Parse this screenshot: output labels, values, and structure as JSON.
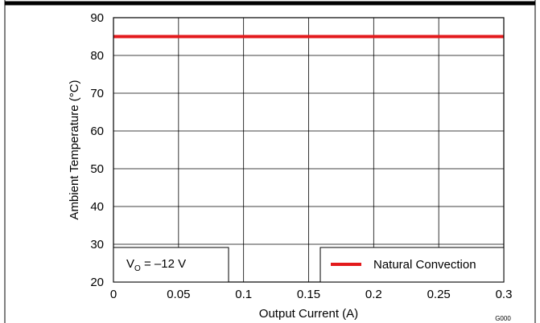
{
  "chart_data": {
    "type": "line",
    "title": "",
    "xlabel": "Output Current (A)",
    "ylabel": "Ambient Temperature (°C)",
    "xlim": [
      0,
      0.3
    ],
    "ylim": [
      20,
      90
    ],
    "x_ticks": [
      "0",
      "0.05",
      "0.1",
      "0.15",
      "0.2",
      "0.25",
      "0.3"
    ],
    "y_ticks": [
      "20",
      "30",
      "40",
      "50",
      "60",
      "70",
      "80",
      "90"
    ],
    "grid": true,
    "legend_position": "bottom-right",
    "series": [
      {
        "name": "Natural Convection",
        "color": "#e31a1c",
        "x": [
          0,
          0.3
        ],
        "y": [
          85,
          85
        ]
      }
    ],
    "annotation": {
      "v": "V",
      "sub": "O",
      "rest": " = –12 V"
    },
    "figure_code": "G000"
  }
}
